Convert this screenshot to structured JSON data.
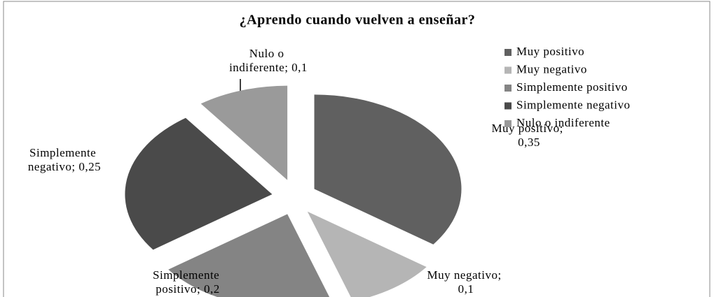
{
  "chart_data": {
    "type": "pie",
    "title": "¿Aprendo cuando vuelven a enseñar?",
    "categories": [
      "Muy positivo",
      "Muy negativo",
      "Simplemente positivo",
      "Simplemente negativo",
      "Nulo o indiferente"
    ],
    "values": [
      0.35,
      0.1,
      0.2,
      0.25,
      0.1
    ],
    "value_labels": [
      "Muy positivo; 0,35",
      "Muy negativo; 0,1",
      "Simplemente positivo; 0,2",
      "Simplemente negativo; 0,25",
      "Nulo o indiferente; 0,1"
    ],
    "colors": [
      "#606060",
      "#b5b5b5",
      "#848484",
      "#4a4a4a",
      "#9a9a9a"
    ],
    "legend": "right"
  }
}
